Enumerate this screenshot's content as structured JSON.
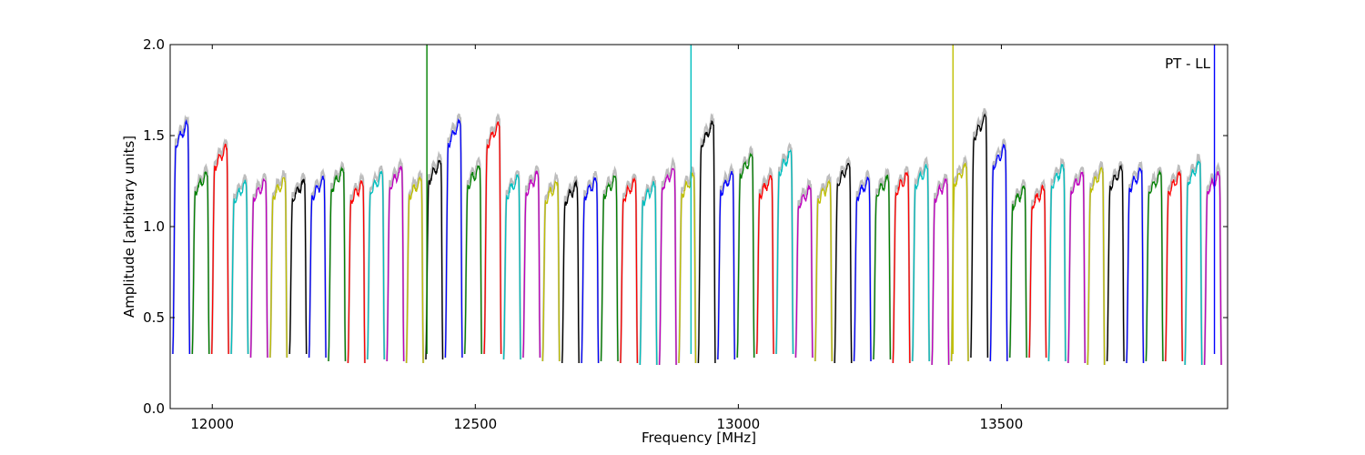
{
  "chart_data": {
    "type": "line",
    "title": "",
    "xlabel": "Frequency [MHz]",
    "ylabel": "Amplitude [arbitrary units]",
    "annotation": "PT - LL",
    "annotation_placement": "top-right",
    "xlim": [
      11920,
      13930
    ],
    "ylim": [
      0.0,
      2.0
    ],
    "grid": false,
    "legend": "none",
    "xticks": [
      12000,
      12500,
      13000,
      13500
    ],
    "xtick_labels": [
      "12000",
      "12500",
      "13000",
      "13500"
    ],
    "yticks": [
      0.0,
      0.5,
      1.0,
      1.5,
      2.0
    ],
    "ytick_labels": [
      "0.0",
      "0.5",
      "1.0",
      "1.5",
      "2.0"
    ],
    "background_series_color": "#bdbdbd",
    "channel_width_mhz": 32,
    "channel_start_mhz": 11925,
    "color_cycle": [
      "#0000ff",
      "#008000",
      "#ff0000",
      "#00bfbf",
      "#bf00bf",
      "#bfbf00",
      "#000000"
    ],
    "channel_peaks": [
      1.58,
      1.3,
      1.45,
      1.25,
      1.26,
      1.27,
      1.26,
      1.27,
      1.32,
      1.25,
      1.3,
      1.33,
      1.27,
      1.37,
      1.59,
      1.34,
      1.58,
      1.28,
      1.3,
      1.25,
      1.24,
      1.27,
      1.28,
      1.26,
      1.24,
      1.33,
      1.29,
      1.58,
      1.3,
      1.4,
      1.28,
      1.42,
      1.22,
      1.25,
      1.35,
      1.27,
      1.28,
      1.3,
      1.34,
      1.26,
      1.35,
      1.62,
      1.45,
      1.22,
      1.22,
      1.34,
      1.3,
      1.32,
      1.33,
      1.32,
      1.3,
      1.3,
      1.36,
      1.3
    ],
    "channel_minima": [
      0.3,
      0.3,
      0.3,
      0.3,
      0.28,
      0.28,
      0.3,
      0.28,
      0.26,
      0.25,
      0.27,
      0.26,
      0.25,
      0.27,
      0.28,
      0.3,
      0.3,
      0.27,
      0.28,
      0.26,
      0.25,
      0.25,
      0.26,
      0.25,
      0.24,
      0.24,
      0.25,
      0.25,
      0.27,
      0.28,
      0.3,
      0.3,
      0.28,
      0.26,
      0.25,
      0.26,
      0.27,
      0.25,
      0.26,
      0.24,
      0.26,
      0.28,
      0.26,
      0.28,
      0.28,
      0.26,
      0.25,
      0.24,
      0.26,
      0.25,
      0.26,
      0.26,
      0.24,
      0.24
    ],
    "spikes": [
      {
        "x": 12408,
        "y": 2.0,
        "color": "#008000"
      },
      {
        "x": 12910,
        "y": 2.0,
        "color": "#00bfbf"
      },
      {
        "x": 13408,
        "y": 2.0,
        "color": "#bfbf00"
      },
      {
        "x": 13905,
        "y": 2.0,
        "color": "#0000ff"
      }
    ]
  }
}
